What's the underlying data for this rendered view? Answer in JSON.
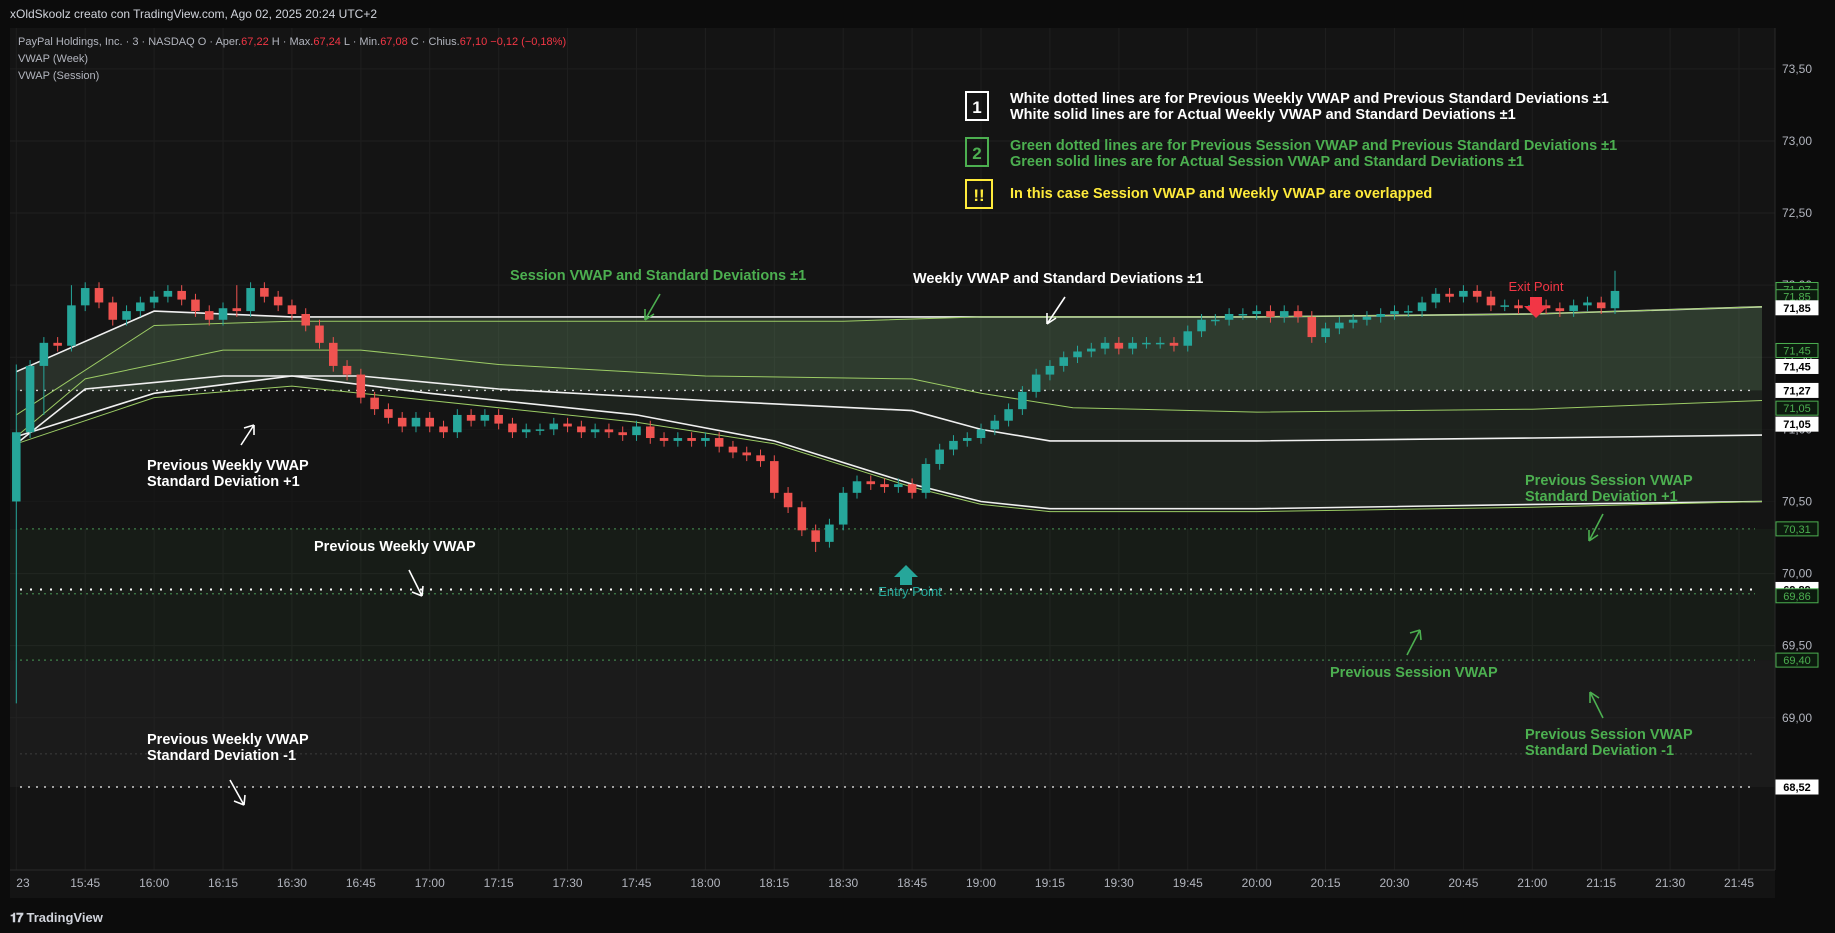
{
  "header": {
    "attribution": "xOldSkoolz creato con TradingView.com, Ago 02, 2025 20:24 UTC+2"
  },
  "legend": {
    "symbol": "PayPal Holdings, Inc. · 3 · NASDAQ",
    "open_label": "O · Aper.",
    "open_value": "67,22",
    "high_label": "H · Max.",
    "high_value": "67,24",
    "low_label": "L · Min.",
    "low_value": "67,08",
    "close_label": "C · Chius.",
    "close_value": "67,10",
    "change": "−0,12 (−0,18%)",
    "indicator_1": "VWAP (Week)",
    "indicator_2": "VWAP (Session)"
  },
  "notes": {
    "n1_badge": "1",
    "n1_line1": "White dotted lines are for Previous Weekly VWAP and Previous Standard Deviations ±1",
    "n1_line2": "White solid lines are for Actual Weekly VWAP and Standard Deviations ±1",
    "n2_badge": "2",
    "n2_line1": "Green dotted lines are for Previous Session VWAP and Previous Standard Deviations ±1",
    "n2_line2": "Green solid lines are for Actual Session VWAP and Standard Deviations ±1",
    "n3_badge": "!!",
    "n3_line1": "In this case Session VWAP and Weekly VWAP are overlapped"
  },
  "annotations": {
    "session_vwap": "Session VWAP and Standard Deviations ±1",
    "weekly_vwap": "Weekly VWAP and Standard Deviations ±1",
    "prev_weekly_sd_plus_1": "Previous Weekly VWAP",
    "prev_weekly_sd_plus_2": "Standard Deviation +1",
    "prev_weekly_vwap": "Previous Weekly VWAP",
    "prev_weekly_sd_minus_1": "Previous Weekly VWAP",
    "prev_weekly_sd_minus_2": "Standard Deviation -1",
    "prev_session_sd_plus_1": "Previous Session VWAP",
    "prev_session_sd_plus_2": "Standard Deviation +1",
    "prev_session_vwap": "Previous Session VWAP",
    "prev_session_sd_minus_1": "Previous Session VWAP",
    "prev_session_sd_minus_2": "Standard Deviation -1",
    "exit_point": "Exit Point",
    "entry_point": "Entry Point"
  },
  "footer": {
    "brand": "TradingView"
  },
  "colors": {
    "background": "#0c0c0c",
    "up": "#26a69a",
    "down": "#ef5350",
    "white_line": "#e0e0e0",
    "green_text": "#4caf50",
    "yellow": "#ffeb3b",
    "exit": "#f23645",
    "entry": "#26a69a"
  },
  "chart_data": {
    "type": "candlestick",
    "ylim": [
      68.0,
      73.7
    ],
    "y_ticks": [
      69.0,
      69.5,
      70.0,
      70.5,
      71.0,
      71.5,
      72.0,
      72.5,
      73.0,
      73.5
    ],
    "y_tick_labels": [
      "69,00",
      "69,50",
      "70,00",
      "70,50",
      "71,00",
      "71,50",
      "72,00",
      "72,50",
      "73,00",
      "73,50"
    ],
    "x_tick_labels": [
      "23",
      "15:45",
      "16:00",
      "16:15",
      "16:30",
      "16:45",
      "17:00",
      "17:15",
      "17:30",
      "17:45",
      "18:00",
      "18:15",
      "18:30",
      "18:45",
      "19:00",
      "19:15",
      "19:30",
      "19:45",
      "20:00",
      "20:15",
      "20:30",
      "20:45",
      "21:00",
      "21:15",
      "21:30",
      "21:45"
    ],
    "x_tick_minutes": [
      930,
      945,
      960,
      975,
      990,
      1005,
      1020,
      1035,
      1050,
      1065,
      1080,
      1095,
      1110,
      1125,
      1140,
      1155,
      1170,
      1185,
      1200,
      1215,
      1230,
      1245,
      1260,
      1275,
      1290,
      1305
    ],
    "time_range_minutes": [
      929.5,
      1310
    ],
    "candles_start_minute": 930,
    "candle_interval_minutes": 3,
    "closes": [
      70.98,
      71.44,
      71.6,
      71.58,
      71.86,
      71.98,
      71.88,
      71.76,
      71.82,
      71.88,
      71.92,
      71.96,
      71.9,
      71.82,
      71.76,
      71.84,
      71.82,
      71.98,
      71.92,
      71.86,
      71.8,
      71.72,
      71.6,
      71.44,
      71.38,
      71.22,
      71.14,
      71.08,
      71.02,
      71.08,
      71.02,
      70.98,
      71.1,
      71.06,
      71.1,
      71.04,
      70.98,
      71.0,
      71.0,
      71.04,
      71.02,
      70.98,
      71.0,
      70.98,
      70.96,
      71.02,
      70.94,
      70.92,
      70.94,
      70.92,
      70.94,
      70.88,
      70.84,
      70.82,
      70.78,
      70.56,
      70.46,
      70.3,
      70.22,
      70.34,
      70.56,
      70.64,
      70.62,
      70.6,
      70.62,
      70.56,
      70.76,
      70.86,
      70.92,
      70.94,
      71.0,
      71.06,
      71.14,
      71.26,
      71.38,
      71.44,
      71.5,
      71.54,
      71.56,
      71.6,
      71.56,
      71.6,
      71.6,
      71.6,
      71.58,
      71.68,
      71.76,
      71.76,
      71.8,
      71.8,
      71.82,
      71.78,
      71.82,
      71.78,
      71.64,
      71.7,
      71.74,
      71.76,
      71.78,
      71.8,
      71.82,
      71.82,
      71.88,
      71.94,
      71.92,
      71.96,
      71.92,
      71.86,
      71.86,
      71.84,
      71.86,
      71.84,
      71.82,
      71.86,
      71.88,
      71.84,
      71.96
    ],
    "first_open": 70.5,
    "wick_highs": {
      "0": 71.45,
      "4": 72.0,
      "16": 72.0,
      "116": 72.1
    },
    "wick_lows": {
      "0": 69.1,
      "58": 70.15,
      "2": 71.1
    },
    "weekly_vwap": [
      [
        930,
        70.9
      ],
      [
        945,
        71.28
      ],
      [
        975,
        71.37
      ],
      [
        1005,
        71.37
      ],
      [
        1035,
        71.28
      ],
      [
        1080,
        71.2
      ],
      [
        1125,
        71.13
      ],
      [
        1140,
        71.0
      ],
      [
        1155,
        70.92
      ],
      [
        1200,
        70.92
      ],
      [
        1260,
        70.94
      ],
      [
        1310,
        70.96
      ]
    ],
    "weekly_sd_plus1": [
      [
        930,
        71.4
      ],
      [
        960,
        71.82
      ],
      [
        990,
        71.78
      ],
      [
        1035,
        71.78
      ],
      [
        1110,
        71.78
      ],
      [
        1140,
        71.78
      ],
      [
        1200,
        71.78
      ],
      [
        1260,
        71.8
      ],
      [
        1310,
        71.85
      ]
    ],
    "weekly_sd_minus1": [
      [
        930,
        70.95
      ],
      [
        960,
        71.25
      ],
      [
        990,
        71.37
      ],
      [
        1020,
        71.25
      ],
      [
        1065,
        71.1
      ],
      [
        1095,
        70.92
      ],
      [
        1125,
        70.62
      ],
      [
        1140,
        70.5
      ],
      [
        1155,
        70.45
      ],
      [
        1200,
        70.45
      ],
      [
        1260,
        70.48
      ],
      [
        1310,
        70.5
      ]
    ],
    "session_vwap": [
      [
        930,
        70.95
      ],
      [
        945,
        71.35
      ],
      [
        975,
        71.55
      ],
      [
        1005,
        71.55
      ],
      [
        1035,
        71.45
      ],
      [
        1080,
        71.37
      ],
      [
        1125,
        71.35
      ],
      [
        1140,
        71.25
      ],
      [
        1160,
        71.15
      ],
      [
        1200,
        71.12
      ],
      [
        1260,
        71.14
      ],
      [
        1310,
        71.2
      ]
    ],
    "session_sd_plus1": [
      [
        930,
        71.1
      ],
      [
        960,
        71.72
      ],
      [
        990,
        71.75
      ],
      [
        1035,
        71.75
      ],
      [
        1110,
        71.75
      ],
      [
        1140,
        71.78
      ],
      [
        1200,
        71.78
      ],
      [
        1260,
        71.8
      ],
      [
        1310,
        71.85
      ]
    ],
    "session_sd_minus1": [
      [
        930,
        70.9
      ],
      [
        960,
        71.22
      ],
      [
        990,
        71.3
      ],
      [
        1020,
        71.2
      ],
      [
        1065,
        71.05
      ],
      [
        1095,
        70.9
      ],
      [
        1125,
        70.6
      ],
      [
        1140,
        70.48
      ],
      [
        1155,
        70.43
      ],
      [
        1200,
        70.43
      ],
      [
        1260,
        70.46
      ],
      [
        1310,
        70.5
      ]
    ],
    "prev_weekly_vwap": 69.89,
    "prev_weekly_sd_plus1": 71.27,
    "prev_weekly_sd_minus1": 68.52,
    "prev_session_vwap": 69.86,
    "prev_session_sd_plus1": 70.31,
    "prev_session_sd_minus1": 69.4,
    "extra_faint_dotted": 68.75,
    "price_labels": [
      {
        "value": 71.97,
        "text": "71,97",
        "style": "green-outline"
      },
      {
        "value": 71.85,
        "text": "71,85",
        "style": "green-outline-upper"
      },
      {
        "value": 71.85,
        "text": "71,85",
        "style": "white"
      },
      {
        "value": 71.45,
        "text": "71,45",
        "style": "green-outline"
      },
      {
        "value": 71.45,
        "text": "71,45",
        "style": "white-lower"
      },
      {
        "value": 71.27,
        "text": "71,27",
        "style": "white"
      },
      {
        "value": 71.05,
        "text": "71,05",
        "style": "green-outline"
      },
      {
        "value": 71.05,
        "text": "71,05",
        "style": "white-lower"
      },
      {
        "value": 70.31,
        "text": "70,31",
        "style": "green-outline"
      },
      {
        "value": 69.89,
        "text": "69,89",
        "style": "white"
      },
      {
        "value": 69.86,
        "text": "69,86",
        "style": "green-outline-lower"
      },
      {
        "value": 69.4,
        "text": "69,40",
        "style": "green-outline"
      },
      {
        "value": 68.52,
        "text": "68,52",
        "style": "white"
      }
    ]
  }
}
